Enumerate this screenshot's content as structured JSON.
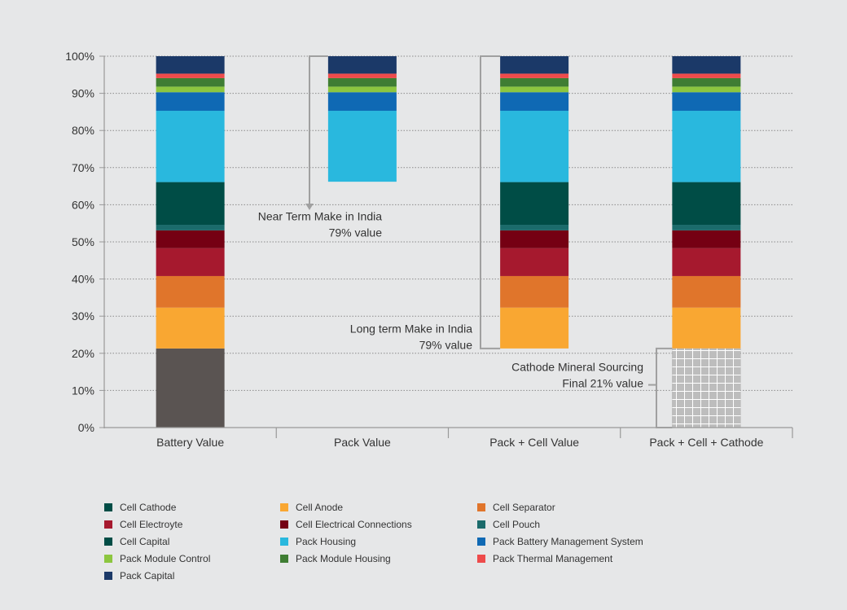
{
  "chart_data": {
    "type": "bar",
    "stacked": true,
    "title": "",
    "xlabel": "",
    "ylabel": "",
    "ylim": [
      0,
      100
    ],
    "yticks": [
      "0%",
      "10%",
      "20%",
      "30%",
      "40%",
      "50%",
      "60%",
      "70%",
      "80%",
      "90%",
      "100%"
    ],
    "grid": "horizontal dotted",
    "legend_position": "bottom",
    "categories": [
      "Battery Value",
      "Pack Value",
      "Pack + Cell Value",
      "Pack + Cell + Cathode"
    ],
    "components": [
      {
        "name": "Cathode Minerals (unlabeled)",
        "color": "#5a5452",
        "share": 21.3
      },
      {
        "name": "Cell Anode",
        "color": "#f9a732",
        "share": 11.0
      },
      {
        "name": "Cell Separator",
        "color": "#e0752b",
        "share": 8.5
      },
      {
        "name": "Cell Electroyte",
        "color": "#a6192e",
        "share": 7.5
      },
      {
        "name": "Cell Electrical Connections",
        "color": "#750013",
        "share": 4.8
      },
      {
        "name": "Cell Pouch",
        "color": "#1b6b6b",
        "share": 1.5
      },
      {
        "name": "Cell Capital",
        "color": "#004d46",
        "share": 11.5
      },
      {
        "name": "Pack Housing",
        "color": "#29b8de",
        "share": 19.2
      },
      {
        "name": "Pack Battery Management System",
        "color": "#0f69b4",
        "share": 5.0
      },
      {
        "name": "Pack Module Control",
        "color": "#8cc63f",
        "share": 1.5
      },
      {
        "name": "Pack Module Housing",
        "color": "#3f7d33",
        "share": 2.3
      },
      {
        "name": "Pack Thermal Management",
        "color": "#ee4b4b",
        "share": 1.2
      },
      {
        "name": "Pack Capital",
        "color": "#1b3968",
        "share": 4.7
      }
    ],
    "bars": [
      {
        "category": "Battery Value",
        "range": [
          0,
          100
        ]
      },
      {
        "category": "Pack Value",
        "range": [
          66.2,
          100
        ]
      },
      {
        "category": "Pack + Cell Value",
        "range": [
          21.3,
          100
        ]
      },
      {
        "category": "Pack + Cell + Cathode",
        "range": [
          0,
          100
        ],
        "hatched_range": [
          0,
          21.3
        ]
      }
    ],
    "annotations": [
      {
        "lines": [
          "Near Term Make in India",
          "79% value"
        ]
      },
      {
        "lines": [
          "Long term Make in India",
          "79% value"
        ]
      },
      {
        "lines": [
          "Cathode Mineral Sourcing",
          "Final 21% value"
        ]
      }
    ]
  },
  "legend": [
    {
      "label": "Cell Cathode",
      "color": "#004d46"
    },
    {
      "label": "Cell Anode",
      "color": "#f9a732"
    },
    {
      "label": "Cell Separator",
      "color": "#e0752b"
    },
    {
      "label": "Cell Electroyte",
      "color": "#a6192e"
    },
    {
      "label": "Cell Electrical Connections",
      "color": "#750013"
    },
    {
      "label": "Cell Pouch",
      "color": "#1b6b6b"
    },
    {
      "label": "Cell Capital",
      "color": "#004d46"
    },
    {
      "label": "Pack Housing",
      "color": "#29b8de"
    },
    {
      "label": "Pack Battery Management System",
      "color": "#0f69b4"
    },
    {
      "label": "Pack Module Control",
      "color": "#8cc63f"
    },
    {
      "label": "Pack Module Housing",
      "color": "#3f7d33"
    },
    {
      "label": "Pack Thermal Management",
      "color": "#ee4b4b"
    },
    {
      "label": "Pack Capital",
      "color": "#1b3968"
    }
  ]
}
